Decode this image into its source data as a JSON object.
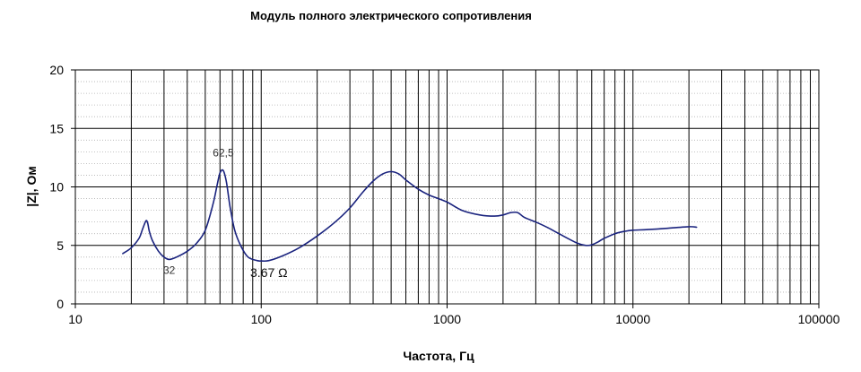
{
  "chart_data": {
    "type": "line",
    "title": "Модуль полного электрического сопротивления",
    "xlabel": "Частота, Гц",
    "ylabel": "|Z|, Ом",
    "xscale": "log",
    "xlim": [
      10,
      100000
    ],
    "ylim": [
      0,
      20
    ],
    "xticks": [
      10,
      100,
      1000,
      10000,
      100000
    ],
    "xtick_labels": [
      "10",
      "100",
      "1000",
      "10000",
      "100000"
    ],
    "yticks": [
      0,
      5,
      10,
      15,
      20
    ],
    "ytick_labels": [
      "0",
      "5",
      "10",
      "15",
      "20"
    ],
    "grid": true,
    "line_color": "#1a237e",
    "series": [
      {
        "x": [
          18,
          20,
          22,
          23,
          24,
          24.5,
          25,
          26,
          28,
          30,
          32,
          35,
          40,
          45,
          50,
          55,
          58,
          60,
          62.5,
          65,
          68,
          72,
          78,
          85,
          95,
          100,
          110,
          130,
          160,
          200,
          250,
          300,
          350,
          400,
          450,
          500,
          550,
          600,
          700,
          800,
          1000,
          1200,
          1500,
          1800,
          2000,
          2200,
          2400,
          2600,
          3000,
          3500,
          4000,
          5000,
          5600,
          6000,
          6500,
          7000,
          8000,
          9000,
          10000,
          12000,
          15000,
          20000,
          22000
        ],
        "y": [
          4.3,
          4.8,
          5.6,
          6.4,
          7.1,
          6.9,
          6.2,
          5.4,
          4.5,
          4.0,
          3.8,
          4.0,
          4.5,
          5.2,
          6.3,
          8.5,
          10.2,
          11.2,
          11.4,
          10.4,
          8.3,
          6.3,
          4.9,
          4.0,
          3.7,
          3.67,
          3.7,
          4.1,
          4.8,
          5.8,
          7.0,
          8.2,
          9.5,
          10.5,
          11.1,
          11.3,
          11.1,
          10.6,
          9.8,
          9.3,
          8.7,
          8.0,
          7.6,
          7.5,
          7.6,
          7.8,
          7.8,
          7.4,
          7.0,
          6.5,
          6.0,
          5.2,
          5.0,
          5.05,
          5.3,
          5.6,
          6.0,
          6.2,
          6.3,
          6.35,
          6.45,
          6.6,
          6.55
        ]
      }
    ],
    "annotations": [
      {
        "text": "32",
        "x": 32,
        "y": 2.55,
        "size": "small"
      },
      {
        "text": "62,5",
        "x": 62.5,
        "y": 12.6,
        "size": "small"
      },
      {
        "text": "3.67 Ω",
        "x": 110,
        "y": 2.3,
        "size": "big"
      }
    ]
  }
}
